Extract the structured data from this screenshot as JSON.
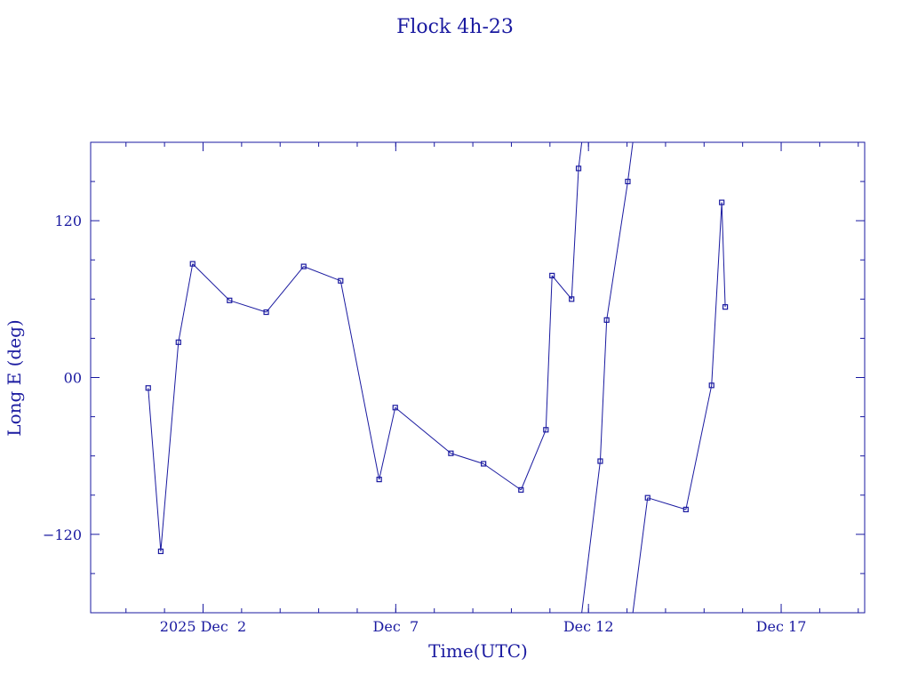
{
  "chart_data": {
    "type": "line",
    "title": "Flock 4h-23",
    "xlabel": "Time(UTC)",
    "ylabel": "Long E (deg)",
    "x_tick_labels": [
      "2025 Dec  2",
      "Dec  7",
      "Dec 12",
      "Dec 17"
    ],
    "y_tick_labels": [
      "−120",
      "00",
      "120"
    ],
    "y_ticks": [
      -120,
      0,
      120
    ],
    "ylim": [
      -180,
      180
    ],
    "xlim": [
      "2025-11-29T02:00",
      "2025-12-19T04:00"
    ],
    "x_ticks": [
      "2025-12-02T00:00",
      "2025-12-07T00:00",
      "2025-12-12T00:00",
      "2025-12-17T00:00"
    ],
    "grid": false,
    "color": "#1a1aa0",
    "series": [
      {
        "points": [
          [
            "2025-11-30T13:50",
            -8
          ],
          [
            "2025-11-30T21:40",
            -133
          ],
          [
            "2025-12-01T08:40",
            27
          ],
          [
            "2025-12-01T17:30",
            87
          ],
          [
            "2025-12-02T16:30",
            59
          ],
          [
            "2025-12-03T15:20",
            50
          ],
          [
            "2025-12-04T14:40",
            85
          ],
          [
            "2025-12-05T13:40",
            74
          ],
          [
            "2025-12-06T13:40",
            -78
          ],
          [
            "2025-12-06T23:40",
            -23
          ],
          [
            "2025-12-08T10:20",
            -58
          ],
          [
            "2025-12-09T06:40",
            -66
          ],
          [
            "2025-12-10T06:00",
            -86
          ],
          [
            "2025-12-10T21:30",
            -40
          ],
          [
            "2025-12-11T01:20",
            78
          ],
          [
            "2025-12-11T13:30",
            60
          ],
          [
            "2025-12-11T17:50",
            160
          ],
          [
            "2025-12-12T07:20",
            -64
          ],
          [
            "2025-12-12T11:20",
            44
          ],
          [
            "2025-12-13T00:30",
            150
          ],
          [
            "2025-12-13T12:50",
            -92
          ],
          [
            "2025-12-14T12:40",
            -101
          ],
          [
            "2025-12-15T04:40",
            -6
          ],
          [
            "2025-12-15T11:00",
            134
          ],
          [
            "2025-12-15T13:10",
            54
          ]
        ]
      }
    ]
  }
}
